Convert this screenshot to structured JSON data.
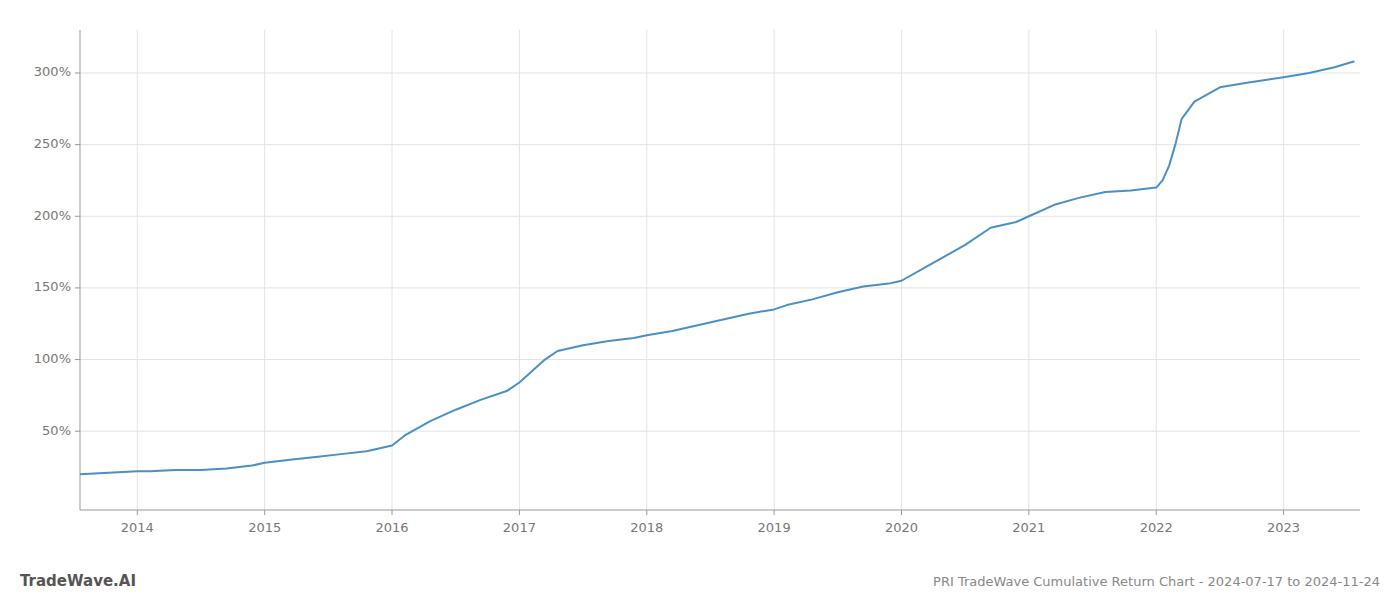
{
  "chart_data": {
    "type": "line",
    "title": "PRI TradeWave Cumulative Return Chart - 2024-07-17 to 2024-11-24",
    "annotations": [
      "TradeWave.AI"
    ],
    "color": "#4a90c4",
    "grid": true,
    "x": [
      2013.55,
      2014.0,
      2014.1,
      2014.3,
      2014.5,
      2014.7,
      2014.9,
      2015.0,
      2015.2,
      2015.4,
      2015.6,
      2015.8,
      2016.0,
      2016.1,
      2016.3,
      2016.5,
      2016.7,
      2016.9,
      2017.0,
      2017.1,
      2017.2,
      2017.3,
      2017.5,
      2017.7,
      2017.9,
      2018.0,
      2018.2,
      2018.4,
      2018.6,
      2018.8,
      2019.0,
      2019.1,
      2019.3,
      2019.5,
      2019.7,
      2019.9,
      2020.0,
      2020.2,
      2020.5,
      2020.7,
      2020.9,
      2021.0,
      2021.2,
      2021.4,
      2021.6,
      2021.8,
      2022.0,
      2022.05,
      2022.1,
      2022.15,
      2022.2,
      2022.3,
      2022.5,
      2022.7,
      2023.0,
      2023.2,
      2023.4,
      2023.55
    ],
    "values": [
      20,
      22,
      22,
      23,
      23,
      24,
      26,
      28,
      30,
      32,
      34,
      36,
      40,
      47,
      57,
      65,
      72,
      78,
      84,
      92,
      100,
      106,
      110,
      113,
      115,
      117,
      120,
      124,
      128,
      132,
      135,
      138,
      142,
      147,
      151,
      153,
      155,
      165,
      180,
      192,
      196,
      200,
      208,
      213,
      217,
      218,
      220,
      225,
      235,
      250,
      268,
      280,
      290,
      293,
      297,
      300,
      304,
      308
    ],
    "xlim": [
      2013.55,
      2023.6
    ],
    "xticks": [
      2014,
      2015,
      2016,
      2017,
      2018,
      2019,
      2020,
      2021,
      2022,
      2023
    ],
    "ylim": [
      -5,
      330
    ],
    "yticks": [
      {
        "value": 50,
        "label": "50%"
      },
      {
        "value": 100,
        "label": "100%"
      },
      {
        "value": 150,
        "label": "150%"
      },
      {
        "value": 200,
        "label": "200%"
      },
      {
        "value": 250,
        "label": "250%"
      },
      {
        "value": 300,
        "label": "300%"
      }
    ]
  }
}
